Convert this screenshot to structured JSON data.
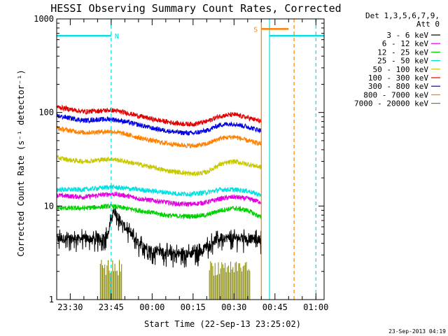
{
  "chart_data": {
    "type": "line",
    "title": "HESSI Observing Summary Count Rates, Corrected",
    "xlabel": "Start Time (22-Sep-13 23:25:02)",
    "ylabel": "Corrected Count Rate (s⁻¹ detector⁻¹)",
    "yscale": "log",
    "ylim": [
      1,
      1000
    ],
    "xlim": [
      "23:25:02",
      "01:03:00"
    ],
    "x_tick_labels": [
      "23:30",
      "23:45",
      "00:00",
      "00:15",
      "00:30",
      "00:45",
      "01:00"
    ],
    "y_tick_labels": [
      "1",
      "10",
      "100",
      "1000"
    ],
    "legend_header": [
      "Det 1,3,5,6,7,9,",
      "Att 0"
    ],
    "series": [
      {
        "name": "3 - 6 keV",
        "color": "#000000",
        "x": [
          "23:25",
          "23:41",
          "23:44",
          "23:46",
          "23:49",
          "23:52",
          "23:55",
          "00:00",
          "00:05",
          "00:10",
          "00:15",
          "00:18",
          "00:21",
          "00:25",
          "00:30",
          "00:35",
          "00:40"
        ],
        "y": [
          4.5,
          4.5,
          5.0,
          9.0,
          6.5,
          5.0,
          4.0,
          3.4,
          3.2,
          3.1,
          3.1,
          3.3,
          4.0,
          4.6,
          4.6,
          4.5,
          4.4
        ]
      },
      {
        "name": "6 - 12 keV",
        "color": "#e000e0",
        "x": [
          "23:25",
          "23:35",
          "23:45",
          "23:50",
          "23:55",
          "00:00",
          "00:05",
          "00:10",
          "00:15",
          "00:20",
          "00:25",
          "00:30",
          "00:35",
          "00:40"
        ],
        "y": [
          13,
          12.5,
          13.5,
          13,
          12,
          11.5,
          11,
          10.5,
          10.5,
          11,
          12,
          12.5,
          12,
          11
        ]
      },
      {
        "name": "12 - 25 keV",
        "color": "#00d000",
        "x": [
          "23:25",
          "23:35",
          "23:45",
          "23:50",
          "23:55",
          "00:00",
          "00:05",
          "00:10",
          "00:15",
          "00:20",
          "00:25",
          "00:30",
          "00:35",
          "00:40"
        ],
        "y": [
          9.5,
          9.5,
          10,
          9.5,
          9,
          8.5,
          8,
          7.8,
          7.8,
          8,
          9,
          9.5,
          9,
          7.5
        ]
      },
      {
        "name": "25 - 50 keV",
        "color": "#00e0e0",
        "x": [
          "23:25",
          "23:35",
          "23:45",
          "23:50",
          "23:55",
          "00:00",
          "00:05",
          "00:10",
          "00:15",
          "00:20",
          "00:25",
          "00:30",
          "00:35",
          "00:40"
        ],
        "y": [
          15,
          15,
          16,
          15.5,
          15,
          14.5,
          14,
          13.5,
          13.5,
          14,
          15,
          15,
          14.5,
          13
        ]
      },
      {
        "name": "50 - 100 keV",
        "color": "#c8c800",
        "x": [
          "23:25",
          "23:30",
          "23:35",
          "23:40",
          "23:45",
          "23:50",
          "23:55",
          "00:00",
          "00:05",
          "00:10",
          "00:15",
          "00:20",
          "00:25",
          "00:30",
          "00:35",
          "00:40"
        ],
        "y": [
          33,
          31,
          30,
          31,
          32,
          30,
          28,
          26,
          24,
          23,
          22,
          23,
          28,
          30,
          28,
          26
        ]
      },
      {
        "name": "100 - 300 keV",
        "color": "#e00000",
        "x": [
          "23:25",
          "23:30",
          "23:35",
          "23:40",
          "23:45",
          "23:50",
          "23:55",
          "00:00",
          "00:05",
          "00:10",
          "00:15",
          "00:20",
          "00:25",
          "00:30",
          "00:35",
          "00:40"
        ],
        "y": [
          115,
          108,
          102,
          104,
          106,
          100,
          92,
          85,
          80,
          76,
          75,
          80,
          92,
          95,
          88,
          80
        ]
      },
      {
        "name": "300 - 800 keV",
        "color": "#0000e0",
        "x": [
          "23:25",
          "23:30",
          "23:35",
          "23:40",
          "23:45",
          "23:50",
          "23:55",
          "00:00",
          "00:05",
          "00:10",
          "00:15",
          "00:20",
          "00:25",
          "00:30",
          "00:35",
          "00:40"
        ],
        "y": [
          92,
          87,
          82,
          84,
          85,
          80,
          74,
          68,
          64,
          61,
          60,
          64,
          74,
          76,
          70,
          64
        ]
      },
      {
        "name": "800 - 7000 keV",
        "color": "#ff8000",
        "x": [
          "23:25",
          "23:30",
          "23:35",
          "23:40",
          "23:45",
          "23:50",
          "23:55",
          "00:00",
          "00:05",
          "00:10",
          "00:15",
          "00:20",
          "00:25",
          "00:30",
          "00:35",
          "00:40"
        ],
        "y": [
          68,
          64,
          61,
          62,
          63,
          59,
          54,
          50,
          47,
          45,
          44,
          46,
          53,
          55,
          50,
          46
        ]
      },
      {
        "name": "7000 - 20000 keV",
        "color": "#808000",
        "segments": [
          {
            "x": [
              "23:41",
              "23:49"
            ],
            "y": [
              2.0,
              2.0
            ]
          },
          {
            "x": [
              "00:21",
              "00:36"
            ],
            "y": [
              2.0,
              2.0
            ]
          }
        ]
      }
    ],
    "flags": [
      {
        "label": "N",
        "color": "#00e0e0",
        "x": [
          "23:25",
          "23:45"
        ],
        "y": 660
      },
      {
        "label": "",
        "color": "#00e0e0",
        "x": [
          "00:43",
          "01:03"
        ],
        "y": 660
      },
      {
        "label": "S",
        "color": "#ff8000",
        "x": [
          "00:40",
          "00:50"
        ],
        "y": 780
      }
    ],
    "vlines": [
      {
        "x": "23:45",
        "color": "#00e0e0",
        "style": "dashed"
      },
      {
        "x": "00:40",
        "color": "#ff8000",
        "style": "solid"
      },
      {
        "x": "00:43",
        "color": "#00e0e0",
        "style": "solid"
      },
      {
        "x": "00:52",
        "color": "#ff8000",
        "style": "dashed"
      },
      {
        "x": "01:00",
        "color": "#00e0e0",
        "style": "dashed"
      }
    ],
    "grid": false,
    "legend_position": "right"
  },
  "timestamp": "23-Sep-2013 04:19"
}
